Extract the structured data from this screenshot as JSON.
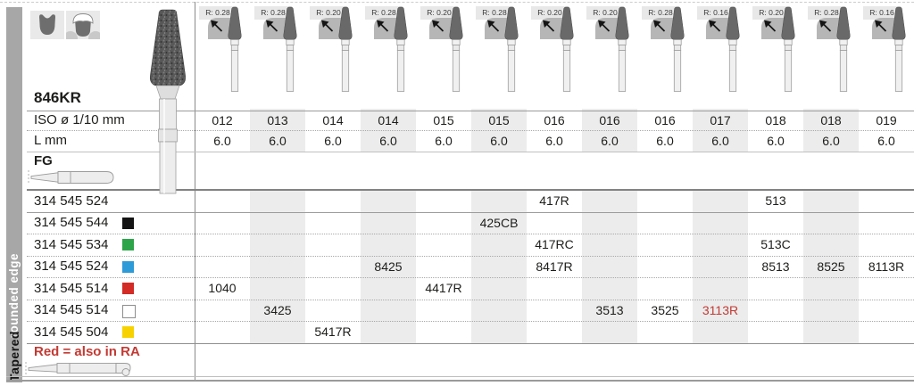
{
  "sidebar": {
    "group_label": "Tapered",
    "sub_label": "rounded edge"
  },
  "header": {
    "product_code": "846KR",
    "iso_row_label": "ISO ø 1/10 mm",
    "length_row_label": "L mm",
    "shank_row_label": "FG"
  },
  "columns": [
    {
      "radius": "R: 0.28",
      "iso": "012",
      "length": "6.0"
    },
    {
      "radius": "R: 0.28",
      "iso": "013",
      "length": "6.0"
    },
    {
      "radius": "R: 0.20",
      "iso": "014",
      "length": "6.0"
    },
    {
      "radius": "R: 0.28",
      "iso": "014",
      "length": "6.0"
    },
    {
      "radius": "R: 0.20",
      "iso": "015",
      "length": "6.0"
    },
    {
      "radius": "R: 0.28",
      "iso": "015",
      "length": "6.0"
    },
    {
      "radius": "R: 0.20",
      "iso": "016",
      "length": "6.0"
    },
    {
      "radius": "R: 0.20",
      "iso": "016",
      "length": "6.0"
    },
    {
      "radius": "R: 0.28",
      "iso": "016",
      "length": "6.0"
    },
    {
      "radius": "R: 0.16",
      "iso": "017",
      "length": "6.0"
    },
    {
      "radius": "R: 0.20",
      "iso": "018",
      "length": "6.0"
    },
    {
      "radius": "R: 0.28",
      "iso": "018",
      "length": "6.0"
    },
    {
      "radius": "R: 0.16",
      "iso": "019",
      "length": "6.0"
    }
  ],
  "order_rows": [
    {
      "order_code": "314 545 524",
      "grit_square": null,
      "cells": [
        {
          "col": 7,
          "figure": "417R"
        },
        {
          "col": 11,
          "figure": "513"
        }
      ]
    },
    {
      "order_code": "314 545 544",
      "grit_square": "#141414",
      "cells": [
        {
          "col": 6,
          "figure": "425CB"
        }
      ]
    },
    {
      "order_code": "314 545 534",
      "grit_square": "#2ea44a",
      "cells": [
        {
          "col": 7,
          "figure": "417RC"
        },
        {
          "col": 11,
          "figure": "513C"
        }
      ]
    },
    {
      "order_code": "314 545 524",
      "grit_square": "#2c9bd8",
      "cells": [
        {
          "col": 4,
          "figure": "8425"
        },
        {
          "col": 7,
          "figure": "8417R"
        },
        {
          "col": 11,
          "figure": "8513"
        },
        {
          "col": 12,
          "figure": "8525"
        },
        {
          "col": 13,
          "figure": "8113R"
        }
      ]
    },
    {
      "order_code": "314 545 514",
      "grit_square": "#d32b26",
      "cells": [
        {
          "col": 1,
          "figure": "1040"
        },
        {
          "col": 5,
          "figure": "4417R"
        }
      ]
    },
    {
      "order_code": "314 545 514",
      "grit_square": "#ffffff",
      "cells": [
        {
          "col": 2,
          "figure": "3425"
        },
        {
          "col": 8,
          "figure": "3513"
        },
        {
          "col": 9,
          "figure": "3525"
        },
        {
          "col": 10,
          "figure": "3113R",
          "red": true
        }
      ]
    },
    {
      "order_code": "314 545 504",
      "grit_square": "#f7d200",
      "cells": [
        {
          "col": 3,
          "figure": "5417R"
        }
      ]
    }
  ],
  "footer": {
    "note": "Red = also in RA"
  },
  "icons": {
    "crown_prep_icon": "molar-silhouette",
    "crowned_tooth_icon": "molar-with-crown-outline",
    "radius_corner_icon": "rounded-corner-arrow",
    "diamond_bur_image": "tapered-round-edge-diamond-bur",
    "fg_shank_icon": "friction-grip-shank",
    "ra_shank_icon": "latch-type-ra-shank"
  },
  "colors": {
    "accent_red": "#c23a33",
    "band": "#ececec",
    "sidebar": "#a7a7a7"
  }
}
